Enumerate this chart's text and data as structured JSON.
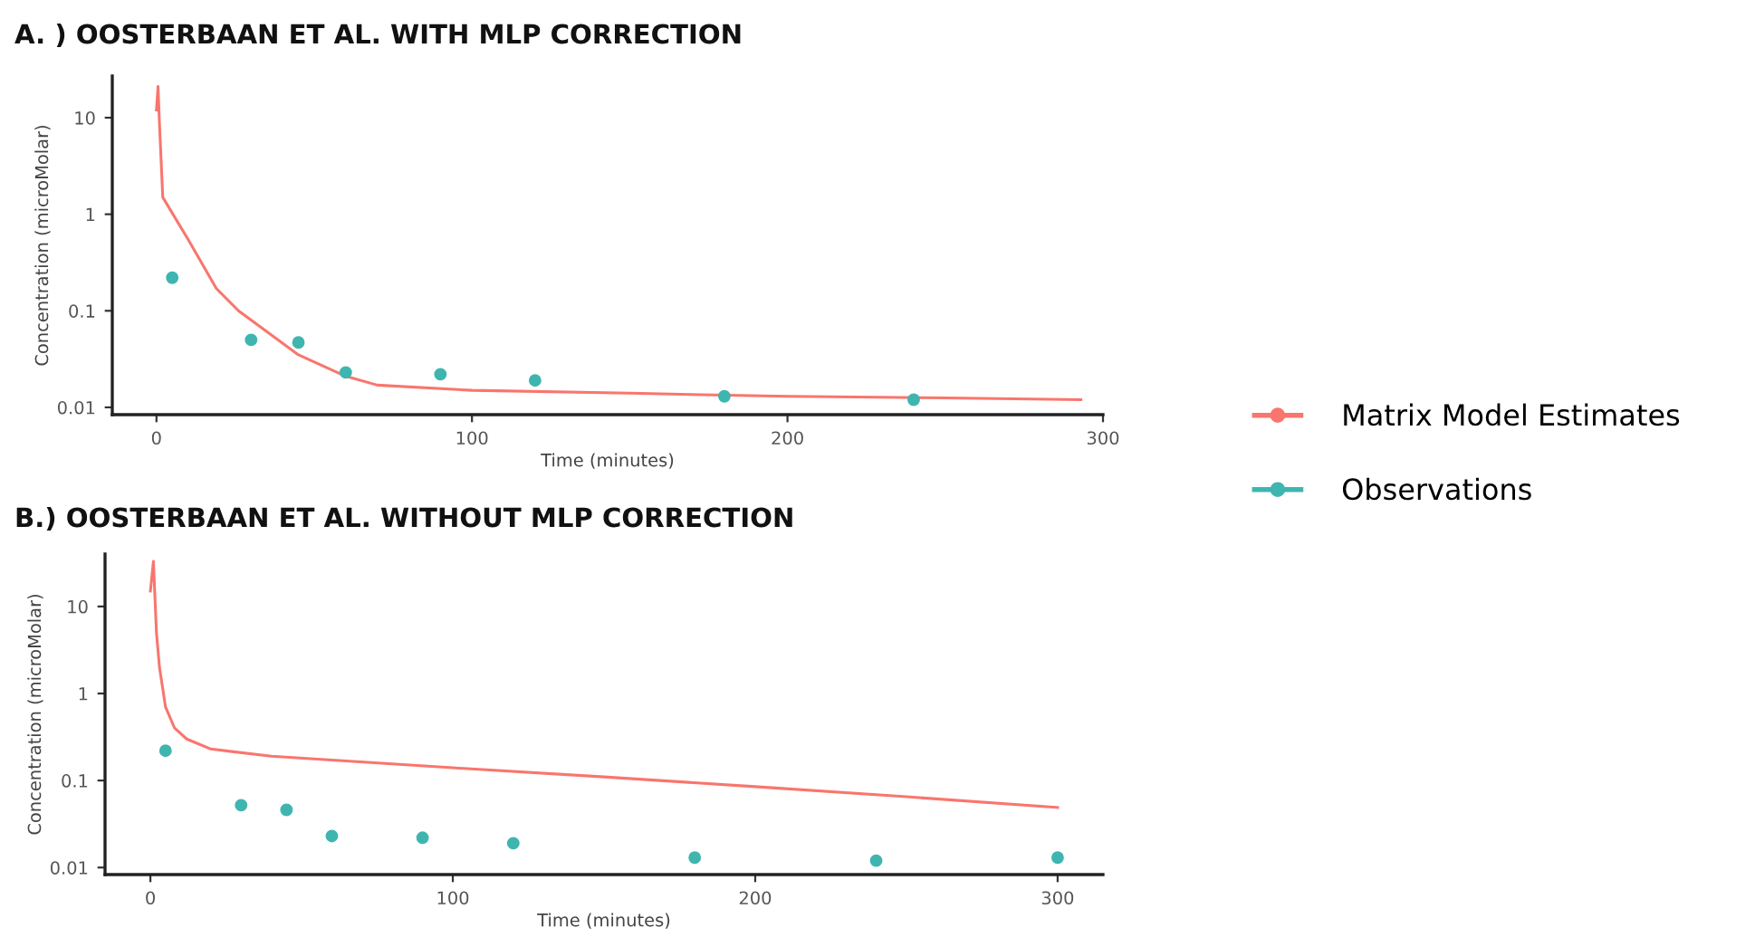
{
  "chart_data": [
    {
      "type": "line",
      "title": "A. ) OOSTERBAAN ET AL. WITH MLP CORRECTION",
      "xlabel": "Time (minutes)",
      "ylabel": "Concentration (microMolar)",
      "log": "y",
      "grid": false,
      "legend": "right",
      "xlim": [
        -14,
        300
      ],
      "xticks": [
        0,
        100,
        200,
        300
      ],
      "ylim": [
        0.0084,
        27
      ],
      "yticks": [
        0.01,
        0.1,
        1,
        10
      ],
      "series": [
        {
          "name": "Matrix Model Estimates",
          "type": "line",
          "color": "#f8766d",
          "marker": "none",
          "x": [
            0,
            0.5,
            1,
            2,
            10,
            19,
            26,
            45,
            60,
            70,
            100,
            150,
            200,
            250,
            293
          ],
          "values": [
            12,
            21,
            8,
            1.5,
            0.55,
            0.17,
            0.1,
            0.035,
            0.021,
            0.017,
            0.015,
            0.014,
            0.013,
            0.0125,
            0.012
          ]
        },
        {
          "name": "Observations",
          "type": "scatter",
          "color": "#3fb5b0",
          "marker": "circle",
          "x": [
            5,
            30,
            45,
            60,
            90,
            120,
            180,
            240
          ],
          "values": [
            0.22,
            0.05,
            0.047,
            0.023,
            0.022,
            0.019,
            0.013,
            0.012
          ]
        }
      ]
    },
    {
      "type": "line",
      "title": "B.) OOSTERBAAN ET AL. WITHOUT MLP CORRECTION",
      "xlabel": "Time (minutes)",
      "ylabel": "Concentration (microMolar)",
      "log": "y",
      "grid": false,
      "xlim": [
        -15,
        315
      ],
      "xticks": [
        0,
        100,
        200,
        300
      ],
      "ylim": [
        0.0083,
        40
      ],
      "yticks": [
        0.01,
        0.1,
        1,
        10
      ],
      "series": [
        {
          "type": "line",
          "color": "#f8766d",
          "marker": "none",
          "x": [
            0,
            1,
            2,
            3,
            5,
            8,
            12,
            20,
            40,
            100,
            150,
            200,
            250,
            300
          ],
          "values": [
            15,
            33,
            5,
            2,
            0.7,
            0.4,
            0.3,
            0.23,
            0.19,
            0.14,
            0.11,
            0.085,
            0.065,
            0.049
          ]
        },
        {
          "type": "scatter",
          "color": "#3fb5b0",
          "marker": "circle",
          "x": [
            5,
            30,
            45,
            60,
            90,
            120,
            180,
            240,
            300
          ],
          "values": [
            0.22,
            0.052,
            0.046,
            0.023,
            0.022,
            0.019,
            0.013,
            0.012,
            0.013
          ]
        }
      ]
    }
  ]
}
